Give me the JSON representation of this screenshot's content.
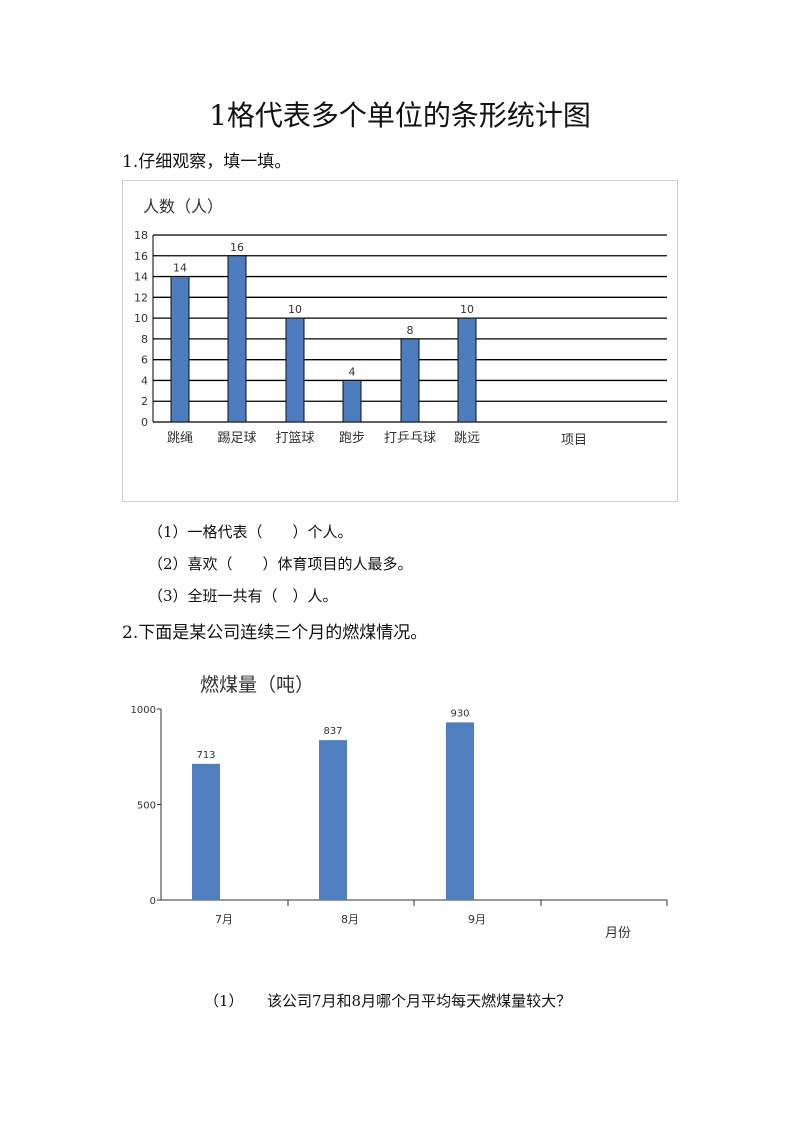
{
  "page": {
    "title": "1格代表多个单位的条形统计图",
    "q1_heading": "1.仔细观察，填一填。",
    "q1_items": [
      "（1）一格代表（　　）个人。",
      "（2）喜欢（　　）体育项目的人最多。",
      "（3）全班一共有（　）人。"
    ],
    "q2_heading": "2.下面是某公司连续三个月的燃煤情况。",
    "q2_item_num": "（1）",
    "q2_item_text": "该公司7月和8月哪个月平均每天燃煤量较大？"
  },
  "chart_data": [
    {
      "type": "bar",
      "ylabel": "人数（人）",
      "xlabel": "项目",
      "categories": [
        "跳绳",
        "踢足球",
        "打篮球",
        "跑步",
        "打乒乓球",
        "跳远"
      ],
      "values": [
        14,
        16,
        10,
        4,
        8,
        10
      ],
      "yticks": [
        "0",
        "2",
        "4",
        "6",
        "8",
        "10",
        "12",
        "14",
        "16",
        "18"
      ],
      "ylim": [
        0,
        18
      ],
      "grid": true,
      "bar_color": "#4d7cbf"
    },
    {
      "type": "bar",
      "ylabel": "燃煤量（吨）",
      "xlabel": "月份",
      "categories": [
        "7月",
        "8月",
        "9月"
      ],
      "values": [
        713,
        837,
        930
      ],
      "yticks": [
        "0",
        "500",
        "1000"
      ],
      "ylim": [
        0,
        1000
      ],
      "grid": false,
      "bar_color": "#4f7fbf"
    }
  ]
}
